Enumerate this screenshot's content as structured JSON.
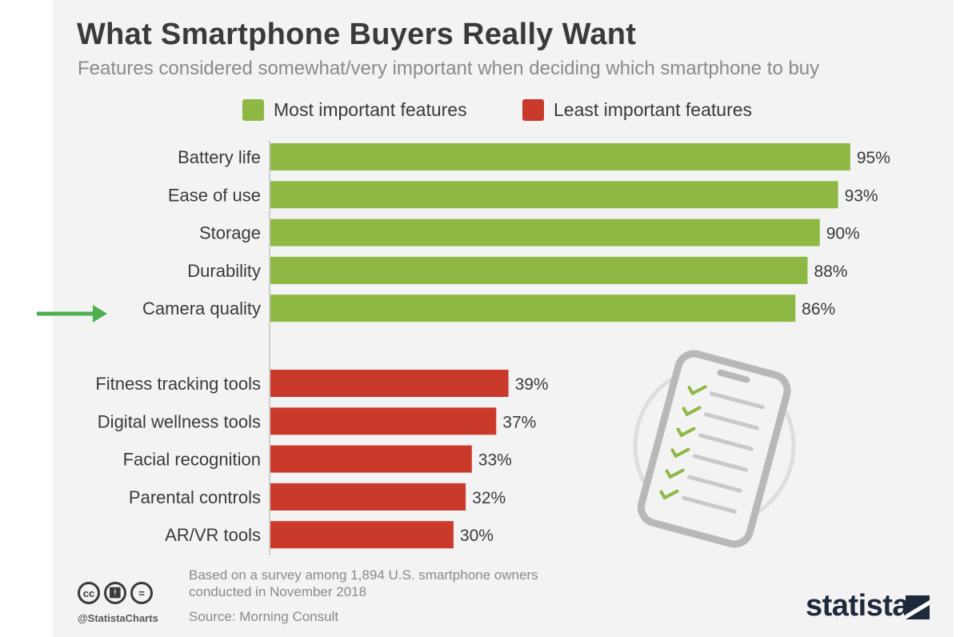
{
  "chart_data": {
    "type": "bar",
    "orientation": "horizontal",
    "title": "What Smartphone Buyers Really Want",
    "subtitle": "Features considered somewhat/very important when deciding which smartphone to buy",
    "unit": "%",
    "xlim": [
      0,
      100
    ],
    "grid": false,
    "legend_position": "top",
    "groups": [
      {
        "name": "Most important features",
        "color": "#8db843",
        "categories": [
          "Battery life",
          "Ease of use",
          "Storage",
          "Durability",
          "Camera quality"
        ],
        "values": [
          95,
          93,
          90,
          88,
          86
        ],
        "labels": [
          "95%",
          "93%",
          "90%",
          "88%",
          "86%"
        ]
      },
      {
        "name": "Least important features",
        "color": "#c93a2a",
        "categories": [
          "Fitness tracking tools",
          "Digital wellness tools",
          "Facial recognition",
          "Parental controls",
          "AR/VR tools"
        ],
        "values": [
          39,
          37,
          33,
          32,
          30
        ],
        "labels": [
          "39%",
          "37%",
          "33%",
          "32%",
          "30%"
        ]
      }
    ],
    "annotations": [
      {
        "type": "arrow",
        "color": "#4caf50",
        "points_to": "Camera quality"
      }
    ]
  },
  "footer": {
    "note": "Based on a survey among 1,894 U.S. smartphone owners conducted in November 2018",
    "source": "Source: Morning Consult",
    "handle": "@StatistaCharts",
    "brand": "statista",
    "cc_icons": [
      "cc",
      "by",
      "nd"
    ]
  },
  "illustration": {
    "icon": "smartphone-checklist-icon"
  }
}
